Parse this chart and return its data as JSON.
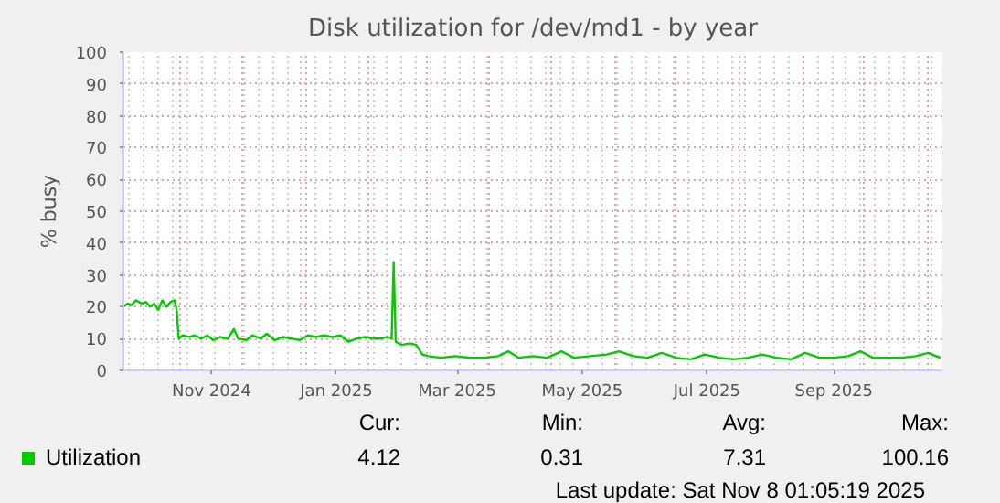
{
  "chart_data": {
    "type": "line",
    "title": "Disk utilization for /dev/md1 - by year",
    "ylabel": "% busy",
    "x": [
      "2024-10-04",
      "2024-10-06",
      "2024-10-08",
      "2024-10-10",
      "2024-10-13",
      "2024-10-15",
      "2024-10-17",
      "2024-10-19",
      "2024-10-21",
      "2024-10-23",
      "2024-10-25",
      "2024-10-27",
      "2024-10-29",
      "2024-10-30",
      "2024-10-31",
      "2024-11-02",
      "2024-11-05",
      "2024-11-08",
      "2024-11-11",
      "2024-11-14",
      "2024-11-17",
      "2024-11-20",
      "2024-11-24",
      "2024-11-27",
      "2024-11-29",
      "2024-12-03",
      "2024-12-06",
      "2024-12-10",
      "2024-12-13",
      "2024-12-17",
      "2024-12-21",
      "2024-12-25",
      "2024-12-29",
      "2025-01-02",
      "2025-01-06",
      "2025-01-10",
      "2025-01-14",
      "2025-01-18",
      "2025-01-22",
      "2025-01-26",
      "2025-01-30",
      "2025-02-03",
      "2025-02-07",
      "2025-02-10",
      "2025-02-12",
      "2025-02-13",
      "2025-02-14",
      "2025-02-17",
      "2025-02-21",
      "2025-02-24",
      "2025-02-27",
      "2025-03-02",
      "2025-03-08",
      "2025-03-15",
      "2025-03-22",
      "2025-03-29",
      "2025-04-05",
      "2025-04-10",
      "2025-04-15",
      "2025-04-22",
      "2025-04-29",
      "2025-05-06",
      "2025-05-12",
      "2025-05-20",
      "2025-05-28",
      "2025-06-03",
      "2025-06-10",
      "2025-06-17",
      "2025-06-24",
      "2025-07-01",
      "2025-07-08",
      "2025-07-15",
      "2025-07-22",
      "2025-07-29",
      "2025-08-05",
      "2025-08-12",
      "2025-08-19",
      "2025-08-26",
      "2025-09-02",
      "2025-09-09",
      "2025-09-16",
      "2025-09-23",
      "2025-09-29",
      "2025-10-05",
      "2025-10-12",
      "2025-10-19",
      "2025-10-26",
      "2025-11-01",
      "2025-11-07"
    ],
    "series": [
      {
        "name": "Utilization",
        "color": "#00cc00",
        "values": [
          20,
          21,
          20.5,
          22,
          21,
          21.5,
          20,
          21,
          19,
          22,
          20,
          21.5,
          22,
          19,
          10,
          11,
          10.5,
          11,
          10,
          11,
          9.5,
          10.5,
          10,
          13,
          10,
          9.5,
          11,
          10,
          11.5,
          9.5,
          10.5,
          10,
          9.5,
          11,
          10.5,
          11,
          10.5,
          11,
          9,
          10,
          10.5,
          10,
          10,
          10.5,
          10,
          34,
          9,
          8,
          8.5,
          8,
          5,
          4.5,
          4,
          4.5,
          4,
          4,
          4.5,
          6,
          4,
          4.5,
          4,
          6,
          4,
          4.5,
          5,
          6,
          4.5,
          4,
          5.5,
          4,
          3.5,
          5,
          4,
          3.5,
          4,
          5,
          4,
          3.5,
          5.5,
          4,
          4,
          4.5,
          6,
          4,
          4,
          4,
          4.5,
          5.5,
          4
        ]
      }
    ],
    "xlim": [
      "2024-10-04",
      "2025-11-08"
    ],
    "xticks": [
      {
        "value": "2024-11-16",
        "label": "Nov 2024"
      },
      {
        "value": "2025-01-16",
        "label": "Jan 2025"
      },
      {
        "value": "2025-03-16",
        "label": "Mar 2025"
      },
      {
        "value": "2025-05-16",
        "label": "May 2025"
      },
      {
        "value": "2025-07-16",
        "label": "Jul 2025"
      },
      {
        "value": "2025-09-16",
        "label": "Sep 2025"
      }
    ],
    "ylim": [
      0,
      100
    ],
    "yticks": [
      0,
      10,
      20,
      30,
      40,
      50,
      60,
      70,
      80,
      90,
      100
    ],
    "grid": true,
    "legend": "bottom",
    "marker": "none",
    "line_style": "solid",
    "annotations": [
      "Cur:",
      "4.12",
      "Min:",
      "0.31",
      "Avg:",
      "7.31",
      "Max:",
      "100.16",
      "Last update: Sat Nov  8 01:05:19 2025"
    ]
  }
}
